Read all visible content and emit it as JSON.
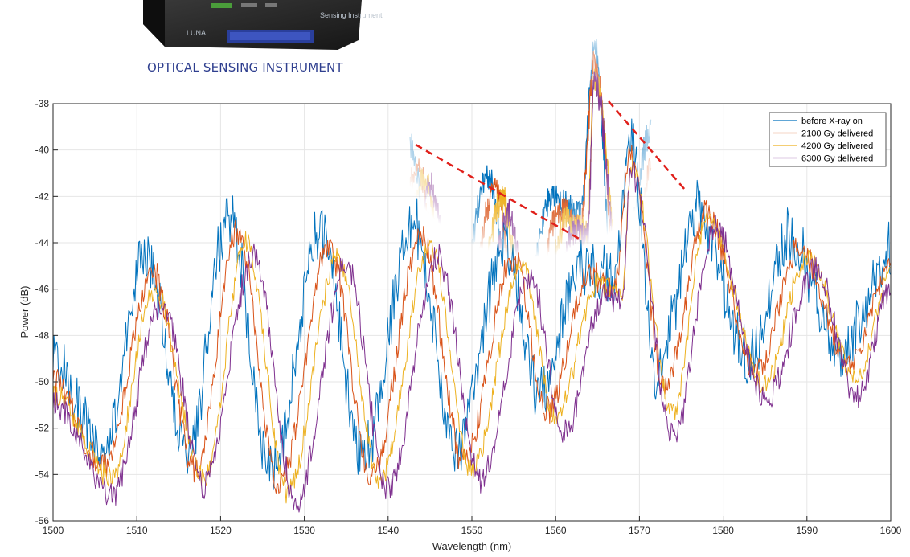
{
  "caption": "OPTICAL SENSING INSTRUMENT",
  "device": {
    "brand": "LUNA",
    "name": "Sensing Instrument"
  },
  "colors": {
    "series": [
      "#0072BD",
      "#D95319",
      "#EDB120",
      "#7E2F8E"
    ],
    "annotation": "#e0201b",
    "grid": "#e6e6e6",
    "axis": "#262626"
  },
  "chart_data": {
    "type": "line",
    "title": "",
    "xlabel": "Wavelength (nm)",
    "ylabel": "Power (dB)",
    "xlim": [
      1500,
      1600
    ],
    "ylim": [
      -56,
      -38
    ],
    "xticks": [
      1500,
      1510,
      1520,
      1530,
      1540,
      1550,
      1560,
      1570,
      1580,
      1590,
      1600
    ],
    "yticks": [
      -56,
      -54,
      -52,
      -50,
      -48,
      -46,
      -44,
      -42,
      -40,
      -38
    ],
    "grid": true,
    "legend_position": "top-right",
    "series": [
      {
        "name": "before X-ray on",
        "x": [
          1500,
          1506,
          1511,
          1516,
          1521,
          1526,
          1532,
          1537,
          1543,
          1548,
          1554,
          1558,
          1563,
          1567,
          1569,
          1572,
          1577,
          1583,
          1588,
          1594,
          1600
        ],
        "y": [
          -49,
          -53,
          -44.5,
          -53,
          -42.8,
          -53.8,
          -43.6,
          -53.2,
          -43.2,
          -52.8,
          -44.2,
          -50.4,
          -45,
          -45.5,
          -39.5,
          -49.5,
          -42.6,
          -49,
          -43.8,
          -48.8,
          -44.5
        ]
      },
      {
        "name": "2100 Gy delivered",
        "x": [
          1500,
          1506,
          1512,
          1517,
          1522,
          1527,
          1533,
          1538,
          1544,
          1549,
          1555,
          1559,
          1564,
          1567,
          1569,
          1573,
          1578,
          1584,
          1589,
          1595,
          1600
        ],
        "y": [
          -50,
          -53.6,
          -45.4,
          -53.8,
          -43.6,
          -54.4,
          -44.2,
          -54,
          -43.8,
          -53.4,
          -44.6,
          -51.2,
          -45.4,
          -46,
          -40.2,
          -50.2,
          -42.8,
          -49.6,
          -44.2,
          -49.2,
          -45
        ]
      },
      {
        "name": "4200 Gy delivered",
        "x": [
          1500,
          1507,
          1512,
          1518,
          1523,
          1528,
          1534,
          1539,
          1545,
          1550,
          1556,
          1560,
          1565,
          1568,
          1569,
          1574,
          1578,
          1585,
          1590,
          1596,
          1600
        ],
        "y": [
          -50.6,
          -54.2,
          -46,
          -54.2,
          -44,
          -54.8,
          -44.6,
          -54.2,
          -44.2,
          -53.8,
          -45,
          -51.6,
          -45.8,
          -46.2,
          -40.6,
          -51.4,
          -43,
          -50,
          -44.6,
          -49.8,
          -45.4
        ]
      },
      {
        "name": "6300 Gy delivered",
        "x": [
          1500,
          1507,
          1513,
          1518,
          1524,
          1529,
          1535,
          1540,
          1546,
          1551,
          1557,
          1561,
          1566,
          1568,
          1569,
          1574,
          1579,
          1585,
          1591,
          1596,
          1600
        ],
        "y": [
          -51,
          -54.8,
          -46.6,
          -54.4,
          -44.6,
          -55.2,
          -45,
          -54.6,
          -44.6,
          -54.2,
          -45.6,
          -52.2,
          -46.2,
          -46.4,
          -40.8,
          -52.4,
          -43.4,
          -50.8,
          -45.2,
          -50.6,
          -46
        ]
      }
    ]
  }
}
